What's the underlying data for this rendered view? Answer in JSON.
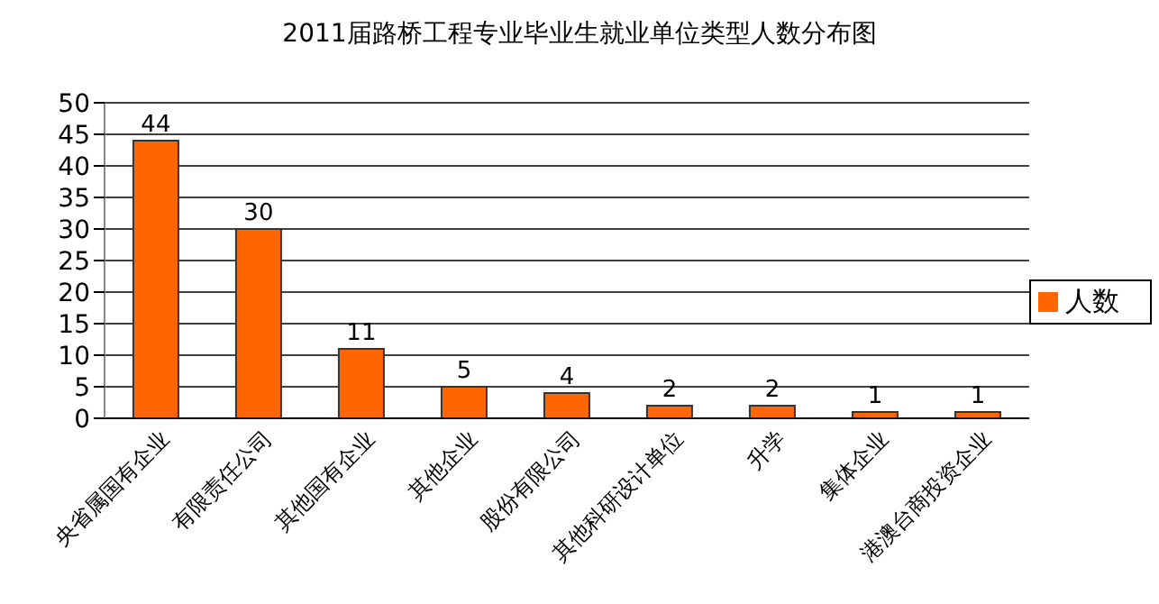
{
  "chart_data": {
    "type": "bar",
    "title": "2011届路桥工程专业毕业生就业单位类型人数分布图",
    "categories": [
      "央省属国有企业",
      "有限责任公司",
      "其他国有企业",
      "其他企业",
      "股份有限公司",
      "其他科研设计单位",
      "升学",
      "集体企业",
      "港澳台商投资企业"
    ],
    "series": [
      {
        "name": "人数",
        "color": "#ff6600",
        "values": [
          44,
          30,
          11,
          5,
          4,
          2,
          2,
          1,
          1
        ]
      }
    ],
    "ylim": [
      0,
      50
    ],
    "yticks": [
      0,
      5,
      10,
      15,
      20,
      25,
      30,
      35,
      40,
      45,
      50
    ],
    "grid": "y",
    "legend": "right",
    "data_labels": true
  }
}
